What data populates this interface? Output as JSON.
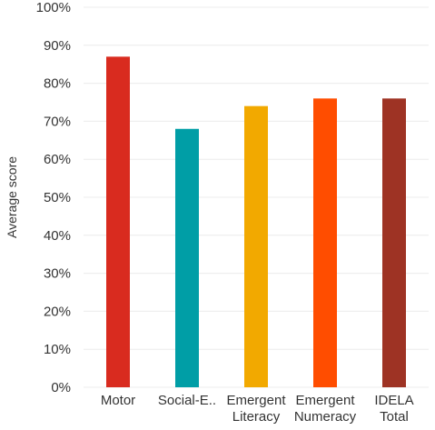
{
  "chart_data": {
    "type": "bar",
    "title": "",
    "xlabel": "",
    "ylabel": "Average score",
    "ylim": [
      0,
      1
    ],
    "y_ticks": [
      "0%",
      "10%",
      "20%",
      "30%",
      "40%",
      "50%",
      "60%",
      "70%",
      "80%",
      "90%",
      "100%"
    ],
    "grid": true,
    "categories": [
      [
        "Motor"
      ],
      [
        "Social-E.."
      ],
      [
        "Emergent",
        "Literacy"
      ],
      [
        "Emergent",
        "Numeracy"
      ],
      [
        "IDELA",
        "Total"
      ]
    ],
    "values": [
      0.87,
      0.68,
      0.74,
      0.76,
      0.76
    ],
    "colors": [
      "#d92b1f",
      "#009ea6",
      "#f2a900",
      "#ff4d00",
      "#9e3324"
    ],
    "legend": "none"
  }
}
